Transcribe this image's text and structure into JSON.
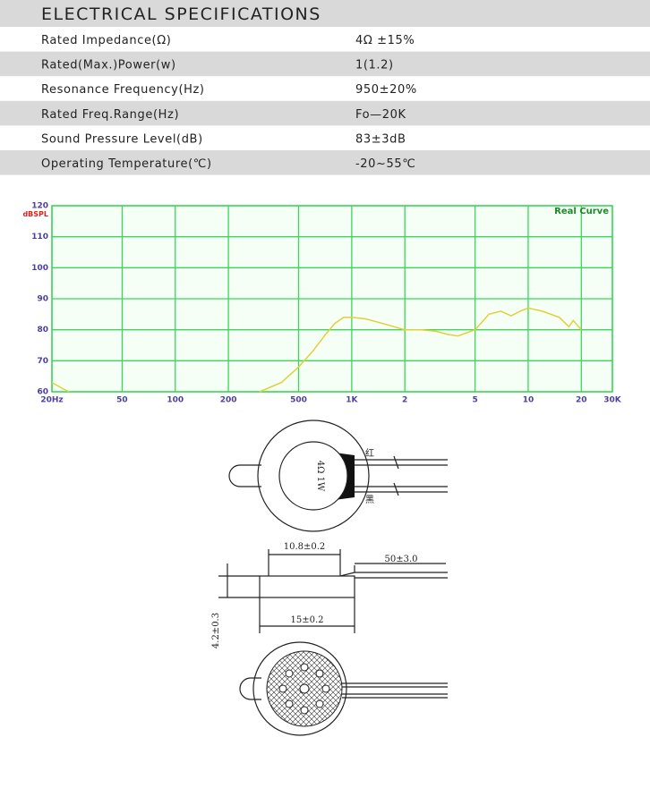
{
  "table": {
    "title": "ELECTRICAL SPECIFICATIONS",
    "rows": [
      [
        "Rated Impedance(Ω)",
        "4Ω ±15%"
      ],
      [
        "Rated(Max.)Power(w)",
        "1(1.2)"
      ],
      [
        "Resonance Frequency(Hz)",
        "950±20%"
      ],
      [
        "Rated Freq.Range(Hz)",
        "Fo—20K"
      ],
      [
        "Sound Pressure Level(dB)",
        "83±3dB"
      ],
      [
        "Operating Temperature(℃)",
        "-20~55℃"
      ]
    ]
  },
  "chart_data": {
    "type": "line",
    "annotation": "Real Curve",
    "ylabel": "dBSPL",
    "log_x": true,
    "grid": true,
    "xlim": [
      20,
      30000
    ],
    "ylim": [
      60,
      120
    ],
    "xticks": [
      {
        "value": 20,
        "label": "20Hz"
      },
      50,
      100,
      200,
      500,
      {
        "value": 1000,
        "label": "1K"
      },
      {
        "value": 2000,
        "label": "2"
      },
      {
        "value": 5000,
        "label": "5"
      },
      {
        "value": 10000,
        "label": "10"
      },
      {
        "value": 20000,
        "label": "20"
      },
      {
        "value": 30000,
        "label": "30K"
      }
    ],
    "yticks": [
      60,
      70,
      80,
      90,
      100,
      110,
      120
    ],
    "x": [
      20,
      23,
      25,
      100,
      300,
      400,
      500,
      600,
      700,
      800,
      900,
      1000,
      1200,
      1500,
      2000,
      2500,
      3000,
      3500,
      4000,
      5000,
      6000,
      7000,
      8000,
      9000,
      10000,
      12000,
      15000,
      17000,
      18000,
      20000
    ],
    "series": [
      {
        "color": "#ddd23a",
        "values": [
          63,
          61,
          60,
          null,
          60,
          63,
          68,
          73,
          78,
          82,
          84,
          84,
          83.5,
          82,
          80,
          80,
          79.5,
          78.5,
          78,
          80,
          85,
          86,
          84.5,
          86,
          87,
          86,
          84,
          81,
          83,
          80
        ]
      }
    ]
  },
  "drawing": {
    "red_wire": "红",
    "black_wire": "黑",
    "marking": "4Ω 1W",
    "inner_dia": "10.8±0.2",
    "lead_len": "50±3.0",
    "outer_dia": "15±0.2",
    "height": "4.2±0.3"
  }
}
